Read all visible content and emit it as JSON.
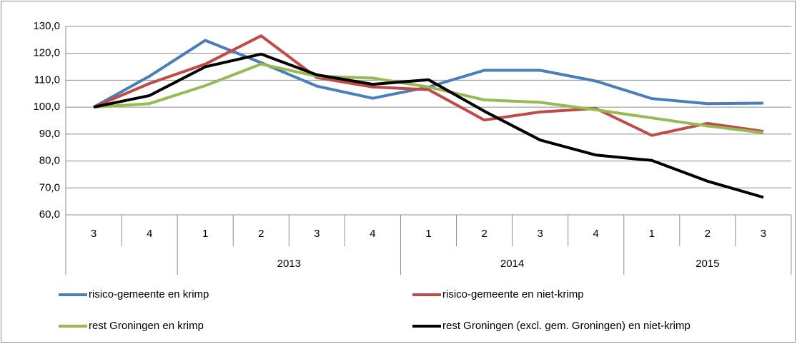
{
  "chart_data": {
    "type": "line",
    "categories": [
      "3",
      "4",
      "1",
      "2",
      "3",
      "4",
      "1",
      "2",
      "3",
      "4",
      "1",
      "2",
      "3"
    ],
    "groups": [
      {
        "label": null,
        "count": 2
      },
      {
        "label": "2013",
        "count": 4
      },
      {
        "label": "2014",
        "count": 4
      },
      {
        "label": "2015",
        "count": 3
      }
    ],
    "ylim": [
      60,
      130
    ],
    "yticks": [
      {
        "value": 60,
        "label": "60,0"
      },
      {
        "value": 70,
        "label": "70,0"
      },
      {
        "value": 80,
        "label": "80,0"
      },
      {
        "value": 90,
        "label": "90,0"
      },
      {
        "value": 100,
        "label": "100,0"
      },
      {
        "value": 110,
        "label": "110,0"
      },
      {
        "value": 120,
        "label": "120,0"
      },
      {
        "value": 130,
        "label": "130,0"
      }
    ],
    "grid": true,
    "legend": "bottom",
    "series": [
      {
        "name": "risico-gemeente en krimp",
        "color": "#4a7ebb",
        "values": [
          100,
          111.5,
          124.8,
          116.5,
          107.8,
          103.3,
          107.5,
          113.7,
          113.7,
          109.7,
          103.2,
          101.3,
          101.5
        ]
      },
      {
        "name": "risico-gemeente en niet-krimp",
        "color": "#be4b48",
        "values": [
          100,
          108.8,
          116,
          126.5,
          111,
          107.5,
          106.5,
          95.2,
          98.2,
          99.5,
          89.5,
          94,
          91
        ]
      },
      {
        "name": "rest Groningen en krimp",
        "color": "#98b954",
        "values": [
          100,
          101.3,
          108,
          116,
          111.5,
          110.8,
          107.5,
          102.7,
          101.8,
          99,
          96,
          93,
          90.5
        ]
      },
      {
        "name": "rest Groningen (excl. gem. Groningen) en niet-krimp",
        "color": "#000000",
        "values": [
          100,
          104.3,
          115,
          119.7,
          112,
          108.5,
          110.2,
          98.5,
          87.8,
          82.2,
          80.2,
          72.5,
          66.5
        ]
      }
    ]
  }
}
